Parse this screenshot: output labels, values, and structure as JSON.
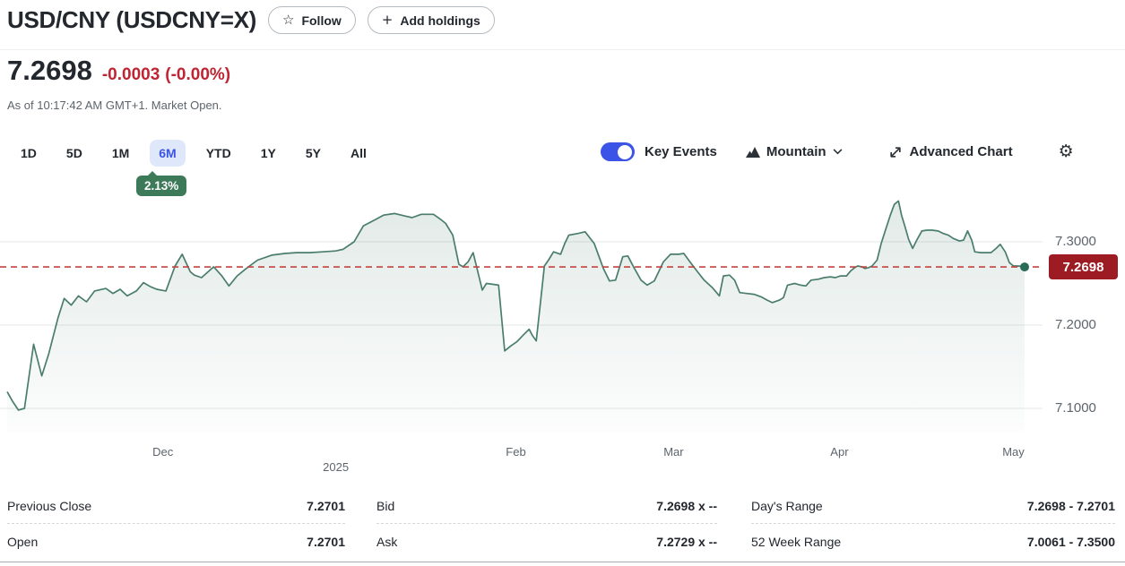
{
  "header": {
    "title": "USD/CNY (USDCNY=X)",
    "follow_label": "Follow",
    "add_holdings_label": "Add holdings"
  },
  "icons": {
    "star": "☆",
    "plus": "+",
    "gear": "⚙"
  },
  "quote": {
    "price": "7.2698",
    "change": "-0.0003",
    "change_percent": "(-0.00%)",
    "as_of": "As of 10:17:42 AM GMT+1. Market Open."
  },
  "toolbar": {
    "ranges": [
      "1D",
      "5D",
      "1M",
      "6M",
      "YTD",
      "1Y",
      "5Y",
      "All"
    ],
    "selected_range": "6M",
    "selected_range_change": "2.13%",
    "key_events_label": "Key Events",
    "key_events_on": true,
    "chart_type_label": "Mountain",
    "advanced_chart_label": "Advanced Chart"
  },
  "chart_data": {
    "type": "area",
    "symbol": "USDCNY=X",
    "range": "6M",
    "ylim": [
      7.07,
      7.36
    ],
    "grid": true,
    "y_ticks": [
      {
        "label": "7.3000",
        "price": 7.3
      },
      {
        "label": "7.2000",
        "price": 7.2
      },
      {
        "label": "7.1000",
        "price": 7.1
      }
    ],
    "current": {
      "label": "7.2698",
      "price": 7.2698
    },
    "x_ticks": [
      {
        "label": "Dec",
        "f": 0.153,
        "row": 1
      },
      {
        "label": "2025",
        "f": 0.323,
        "row": 2
      },
      {
        "label": "Feb",
        "f": 0.5,
        "row": 1
      },
      {
        "label": "Mar",
        "f": 0.655,
        "row": 1
      },
      {
        "label": "Apr",
        "f": 0.818,
        "row": 1
      },
      {
        "label": "May",
        "f": 0.989,
        "row": 1
      }
    ],
    "series": [
      {
        "name": "USDCNY=X",
        "points": [
          [
            0.0,
            7.12
          ],
          [
            0.005,
            7.109
          ],
          [
            0.011,
            7.098
          ],
          [
            0.017,
            7.1
          ],
          [
            0.026,
            7.177
          ],
          [
            0.034,
            7.139
          ],
          [
            0.041,
            7.166
          ],
          [
            0.05,
            7.209
          ],
          [
            0.056,
            7.232
          ],
          [
            0.063,
            7.224
          ],
          [
            0.07,
            7.235
          ],
          [
            0.078,
            7.228
          ],
          [
            0.086,
            7.241
          ],
          [
            0.097,
            7.244
          ],
          [
            0.104,
            7.238
          ],
          [
            0.111,
            7.243
          ],
          [
            0.118,
            7.235
          ],
          [
            0.127,
            7.241
          ],
          [
            0.134,
            7.251
          ],
          [
            0.141,
            7.246
          ],
          [
            0.147,
            7.243
          ],
          [
            0.156,
            7.241
          ],
          [
            0.165,
            7.271
          ],
          [
            0.172,
            7.285
          ],
          [
            0.18,
            7.264
          ],
          [
            0.184,
            7.26
          ],
          [
            0.191,
            7.257
          ],
          [
            0.203,
            7.27
          ],
          [
            0.211,
            7.259
          ],
          [
            0.218,
            7.247
          ],
          [
            0.226,
            7.259
          ],
          [
            0.235,
            7.268
          ],
          [
            0.246,
            7.278
          ],
          [
            0.26,
            7.284
          ],
          [
            0.273,
            7.286
          ],
          [
            0.284,
            7.287
          ],
          [
            0.297,
            7.287
          ],
          [
            0.31,
            7.288
          ],
          [
            0.323,
            7.289
          ],
          [
            0.33,
            7.291
          ],
          [
            0.341,
            7.3
          ],
          [
            0.35,
            7.319
          ],
          [
            0.361,
            7.326
          ],
          [
            0.37,
            7.332
          ],
          [
            0.381,
            7.334
          ],
          [
            0.391,
            7.331
          ],
          [
            0.398,
            7.329
          ],
          [
            0.407,
            7.333
          ],
          [
            0.419,
            7.333
          ],
          [
            0.426,
            7.327
          ],
          [
            0.431,
            7.322
          ],
          [
            0.438,
            7.308
          ],
          [
            0.444,
            7.273
          ],
          [
            0.448,
            7.27
          ],
          [
            0.453,
            7.276
          ],
          [
            0.458,
            7.287
          ],
          [
            0.463,
            7.262
          ],
          [
            0.467,
            7.242
          ],
          [
            0.471,
            7.25
          ],
          [
            0.477,
            7.249
          ],
          [
            0.483,
            7.248
          ],
          [
            0.489,
            7.169
          ],
          [
            0.495,
            7.175
          ],
          [
            0.501,
            7.18
          ],
          [
            0.508,
            7.189
          ],
          [
            0.513,
            7.195
          ],
          [
            0.516,
            7.188
          ],
          [
            0.52,
            7.181
          ],
          [
            0.524,
            7.225
          ],
          [
            0.528,
            7.271
          ],
          [
            0.532,
            7.278
          ],
          [
            0.537,
            7.288
          ],
          [
            0.544,
            7.285
          ],
          [
            0.548,
            7.298
          ],
          [
            0.552,
            7.308
          ],
          [
            0.561,
            7.31
          ],
          [
            0.568,
            7.312
          ],
          [
            0.577,
            7.298
          ],
          [
            0.586,
            7.268
          ],
          [
            0.592,
            7.253
          ],
          [
            0.598,
            7.254
          ],
          [
            0.605,
            7.282
          ],
          [
            0.61,
            7.283
          ],
          [
            0.616,
            7.269
          ],
          [
            0.623,
            7.254
          ],
          [
            0.629,
            7.248
          ],
          [
            0.636,
            7.253
          ],
          [
            0.645,
            7.276
          ],
          [
            0.652,
            7.285
          ],
          [
            0.66,
            7.285
          ],
          [
            0.665,
            7.286
          ],
          [
            0.671,
            7.276
          ],
          [
            0.678,
            7.265
          ],
          [
            0.685,
            7.254
          ],
          [
            0.693,
            7.245
          ],
          [
            0.7,
            7.235
          ],
          [
            0.704,
            7.259
          ],
          [
            0.71,
            7.26
          ],
          [
            0.715,
            7.254
          ],
          [
            0.72,
            7.239
          ],
          [
            0.727,
            7.238
          ],
          [
            0.734,
            7.237
          ],
          [
            0.741,
            7.234
          ],
          [
            0.747,
            7.23
          ],
          [
            0.752,
            7.227
          ],
          [
            0.759,
            7.23
          ],
          [
            0.763,
            7.233
          ],
          [
            0.767,
            7.248
          ],
          [
            0.774,
            7.25
          ],
          [
            0.78,
            7.248
          ],
          [
            0.785,
            7.247
          ],
          [
            0.79,
            7.254
          ],
          [
            0.797,
            7.255
          ],
          [
            0.803,
            7.257
          ],
          [
            0.809,
            7.258
          ],
          [
            0.814,
            7.257
          ],
          [
            0.819,
            7.259
          ],
          [
            0.825,
            7.259
          ],
          [
            0.829,
            7.265
          ],
          [
            0.833,
            7.269
          ],
          [
            0.836,
            7.271
          ],
          [
            0.84,
            7.27
          ],
          [
            0.843,
            7.268
          ],
          [
            0.847,
            7.269
          ],
          [
            0.85,
            7.271
          ],
          [
            0.855,
            7.278
          ],
          [
            0.859,
            7.298
          ],
          [
            0.863,
            7.313
          ],
          [
            0.868,
            7.332
          ],
          [
            0.872,
            7.345
          ],
          [
            0.876,
            7.349
          ],
          [
            0.879,
            7.332
          ],
          [
            0.883,
            7.316
          ],
          [
            0.886,
            7.303
          ],
          [
            0.89,
            7.292
          ],
          [
            0.894,
            7.302
          ],
          [
            0.899,
            7.313
          ],
          [
            0.904,
            7.314
          ],
          [
            0.909,
            7.314
          ],
          [
            0.915,
            7.313
          ],
          [
            0.92,
            7.31
          ],
          [
            0.925,
            7.308
          ],
          [
            0.93,
            7.304
          ],
          [
            0.936,
            7.301
          ],
          [
            0.94,
            7.302
          ],
          [
            0.944,
            7.313
          ],
          [
            0.948,
            7.302
          ],
          [
            0.951,
            7.288
          ],
          [
            0.957,
            7.287
          ],
          [
            0.962,
            7.287
          ],
          [
            0.967,
            7.287
          ],
          [
            0.972,
            7.292
          ],
          [
            0.976,
            7.297
          ],
          [
            0.981,
            7.288
          ],
          [
            0.985,
            7.275
          ],
          [
            0.989,
            7.271
          ],
          [
            0.994,
            7.271
          ],
          [
            1.0,
            7.2698
          ]
        ]
      }
    ]
  },
  "stats": {
    "columns": [
      [
        {
          "label": "Previous Close",
          "value": "7.2701"
        },
        {
          "label": "Open",
          "value": "7.2701"
        }
      ],
      [
        {
          "label": "Bid",
          "value": "7.2698 x --"
        },
        {
          "label": "Ask",
          "value": "7.2729 x --"
        }
      ],
      [
        {
          "label": "Day's Range",
          "value": "7.2698 - 7.2701"
        },
        {
          "label": "52 Week Range",
          "value": "7.0061 - 7.3500"
        }
      ]
    ]
  },
  "colors": {
    "accent_blue": "#3b53e6",
    "tab_bg": "#dfe7fb",
    "negative_red": "#bf2433",
    "dash_red": "#c5423f",
    "badge_red_bg": "#9d1c24",
    "badge_green_bg": "#3d7a59",
    "line_green": "#4a7d6d",
    "dot_green": "#2c6b57",
    "grid": "#e3e7ea",
    "text_dark": "#23272e",
    "text_gray": "#5d646b"
  }
}
